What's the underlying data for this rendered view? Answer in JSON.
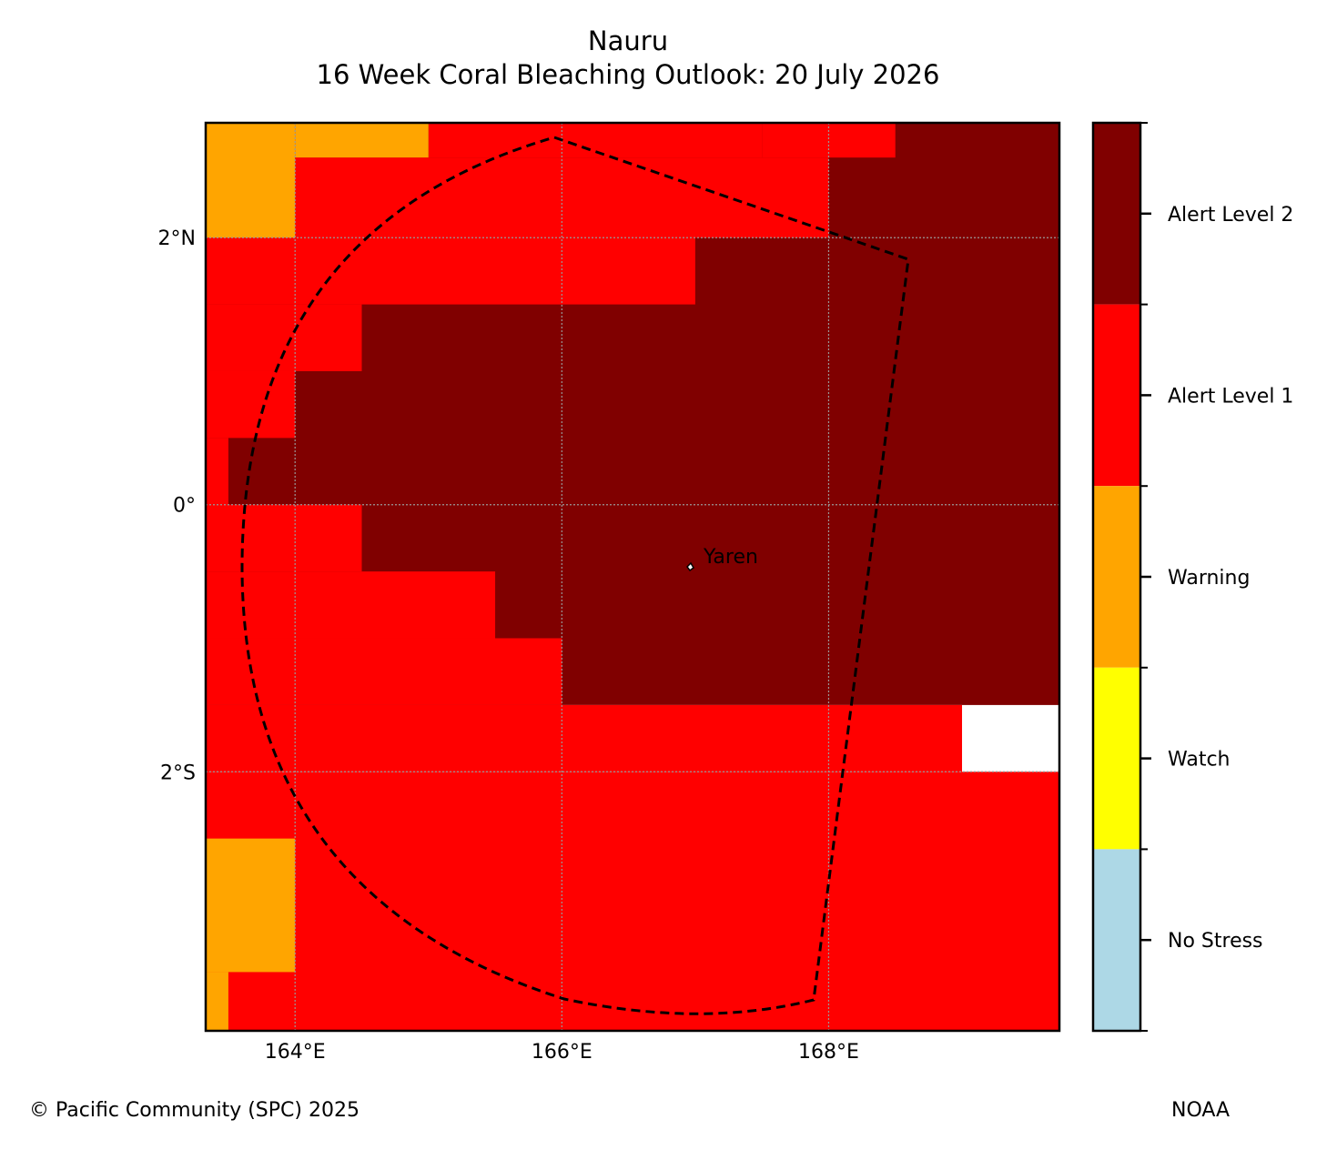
{
  "title": {
    "line1": "Nauru",
    "line2": "16 Week Coral Bleaching Outlook: 20 July 2026"
  },
  "map": {
    "region": "Nauru",
    "lon_range_deg": [
      163.33,
      169.73
    ],
    "lat_range_deg": [
      -3.94,
      2.86
    ],
    "grid_cell_deg": 0.5,
    "lat_ticks": [
      {
        "value": 2,
        "label": "2°N"
      },
      {
        "value": 0,
        "label": "0°"
      },
      {
        "value": -2,
        "label": "2°S"
      }
    ],
    "lon_ticks": [
      {
        "value": 164,
        "label": "164°E"
      },
      {
        "value": 166,
        "label": "166°E"
      },
      {
        "value": 168,
        "label": "168°E"
      }
    ],
    "gridlines": true,
    "place": {
      "name": "Yaren",
      "lon": 166.92,
      "lat": -0.53
    },
    "eez_boundary": "dashed black outline",
    "regions": [
      {
        "level": "alert2",
        "lon": [
          163.33,
          169.73
        ],
        "lat": [
          -1.5,
          2.86
        ]
      },
      {
        "level": "alert1",
        "lon": [
          165.0,
          167.5
        ],
        "lat": [
          2.6,
          2.86
        ]
      },
      {
        "level": "alert1",
        "lon": [
          167.5,
          168.5
        ],
        "lat": [
          2.6,
          2.86
        ]
      },
      {
        "level": "alert1",
        "lon": [
          164.0,
          168.0
        ],
        "lat": [
          2.0,
          2.6
        ]
      },
      {
        "level": "alert1",
        "lon": [
          163.33,
          167.0
        ],
        "lat": [
          1.5,
          2.0
        ]
      },
      {
        "level": "alert1",
        "lon": [
          163.33,
          164.5
        ],
        "lat": [
          1.0,
          1.5
        ]
      },
      {
        "level": "alert1",
        "lon": [
          163.33,
          164.0
        ],
        "lat": [
          0.5,
          1.0
        ]
      },
      {
        "level": "alert1",
        "lon": [
          163.33,
          163.5
        ],
        "lat": [
          0.0,
          0.5
        ]
      },
      {
        "level": "alert1",
        "lon": [
          163.33,
          164.5
        ],
        "lat": [
          -0.5,
          0.0
        ]
      },
      {
        "level": "alert1",
        "lon": [
          163.33,
          165.5
        ],
        "lat": [
          -1.0,
          -0.5
        ]
      },
      {
        "level": "alert1",
        "lon": [
          163.33,
          166.0
        ],
        "lat": [
          -1.5,
          -1.0
        ]
      },
      {
        "level": "alert1",
        "lon": [
          163.33,
          169.0
        ],
        "lat": [
          -2.0,
          -1.5
        ]
      },
      {
        "level": "alert1",
        "lon": [
          163.33,
          169.73
        ],
        "lat": [
          -3.94,
          -2.0
        ]
      },
      {
        "level": "warning",
        "lon": [
          163.33,
          164.0
        ],
        "lat": [
          2.0,
          2.86
        ]
      },
      {
        "level": "warning",
        "lon": [
          164.0,
          165.0
        ],
        "lat": [
          2.6,
          2.86
        ]
      },
      {
        "level": "warning",
        "lon": [
          163.33,
          164.0
        ],
        "lat": [
          -3.5,
          -2.5
        ]
      },
      {
        "level": "warning",
        "lon": [
          163.33,
          163.5
        ],
        "lat": [
          -3.94,
          -3.5
        ]
      }
    ]
  },
  "legend": {
    "categories": [
      {
        "key": "alert2",
        "label": "Alert Level 2",
        "color": "#800000"
      },
      {
        "key": "alert1",
        "label": "Alert Level 1",
        "color": "#ff0000"
      },
      {
        "key": "warning",
        "label": "Warning",
        "color": "#ffa500"
      },
      {
        "key": "watch",
        "label": "Watch",
        "color": "#ffff00"
      },
      {
        "key": "nostress",
        "label": "No Stress",
        "color": "#add8e6"
      }
    ]
  },
  "footer": {
    "left": "© Pacific Community (SPC) 2025",
    "right": "NOAA"
  }
}
